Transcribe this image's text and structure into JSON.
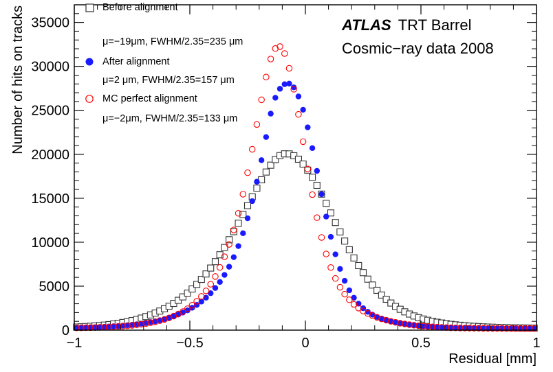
{
  "chart_data": {
    "type": "scatter",
    "title": "",
    "xlabel": "Residual [mm]",
    "ylabel": "Number of hits on tracks",
    "xlim": [
      -1,
      1
    ],
    "ylim": [
      0,
      37000
    ],
    "x_ticks": [
      -1,
      -0.5,
      0,
      0.5,
      1
    ],
    "x_tick_labels": [
      "−1",
      "−0.5",
      "0",
      "0.5",
      "1"
    ],
    "y_ticks": [
      0,
      5000,
      10000,
      15000,
      20000,
      25000,
      30000,
      35000
    ],
    "y_tick_labels": [
      "0",
      "5000",
      "10000",
      "15000",
      "20000",
      "25000",
      "30000",
      "35000"
    ],
    "grid": false,
    "legend_position": "top-left",
    "annotations": [
      {
        "bold": "ATLAS",
        "text": "TRT Barrel"
      },
      {
        "text": "Cosmic−ray data 2008"
      }
    ],
    "x": [
      -0.99,
      -0.97,
      -0.95,
      -0.93,
      -0.91,
      -0.89,
      -0.87,
      -0.85,
      -0.83,
      -0.81,
      -0.79,
      -0.77,
      -0.75,
      -0.73,
      -0.71,
      -0.69,
      -0.67,
      -0.65,
      -0.63,
      -0.61,
      -0.59,
      -0.57,
      -0.55,
      -0.53,
      -0.51,
      -0.49,
      -0.47,
      -0.45,
      -0.43,
      -0.41,
      -0.39,
      -0.37,
      -0.35,
      -0.33,
      -0.31,
      -0.29,
      -0.27,
      -0.25,
      -0.23,
      -0.21,
      -0.19,
      -0.17,
      -0.15,
      -0.13,
      -0.11,
      -0.09,
      -0.07,
      -0.05,
      -0.03,
      -0.01,
      0.01,
      0.03,
      0.05,
      0.07,
      0.09,
      0.11,
      0.13,
      0.15,
      0.17,
      0.19,
      0.21,
      0.23,
      0.25,
      0.27,
      0.29,
      0.31,
      0.33,
      0.35,
      0.37,
      0.39,
      0.41,
      0.43,
      0.45,
      0.47,
      0.49,
      0.51,
      0.53,
      0.55,
      0.57,
      0.59,
      0.61,
      0.63,
      0.65,
      0.67,
      0.69,
      0.71,
      0.73,
      0.75,
      0.77,
      0.79,
      0.81,
      0.83,
      0.85,
      0.87,
      0.89,
      0.91,
      0.93,
      0.95,
      0.97,
      0.99
    ],
    "series": [
      {
        "name": "Before alignment",
        "sub_label": "μ=−19μm, FWHM/2.35=235 μm",
        "marker": "open-square",
        "color": "#333333",
        "values": [
          350,
          380,
          410,
          440,
          480,
          520,
          570,
          630,
          700,
          780,
          870,
          970,
          1090,
          1220,
          1370,
          1540,
          1730,
          1940,
          2170,
          2430,
          2720,
          3040,
          3390,
          3780,
          4210,
          4680,
          5200,
          5770,
          6390,
          7060,
          7790,
          8570,
          9400,
          10280,
          11200,
          12160,
          13150,
          14160,
          15160,
          16150,
          17100,
          17980,
          18760,
          19400,
          19850,
          20050,
          20040,
          19830,
          19440,
          18890,
          18200,
          17390,
          16470,
          15470,
          14420,
          13330,
          12240,
          11170,
          10130,
          9140,
          8210,
          7340,
          6540,
          5800,
          5130,
          4530,
          3990,
          3510,
          3080,
          2700,
          2370,
          2080,
          1830,
          1610,
          1420,
          1260,
          1120,
          1000,
          900,
          810,
          730,
          660,
          600,
          550,
          500,
          460,
          430,
          400,
          370,
          350,
          330,
          310,
          295,
          280,
          270,
          260,
          250,
          240,
          235,
          230
        ]
      },
      {
        "name": "After alignment",
        "sub_label": "μ=2 μm, FWHM/2.35=157 μm",
        "marker": "filled-circle",
        "color": "#1a1aff",
        "values": [
          290,
          300,
          310,
          320,
          340,
          360,
          380,
          410,
          440,
          470,
          510,
          560,
          610,
          670,
          740,
          820,
          910,
          1010,
          1130,
          1260,
          1410,
          1580,
          1780,
          2000,
          2250,
          2540,
          2870,
          3250,
          3690,
          4200,
          4790,
          5480,
          6280,
          7210,
          8300,
          9560,
          11020,
          12720,
          14670,
          16880,
          19330,
          21960,
          24620,
          26430,
          27450,
          27970,
          28040,
          27610,
          26580,
          25060,
          23060,
          20700,
          18110,
          15460,
          12910,
          10610,
          8620,
          6960,
          5610,
          4530,
          3680,
          3010,
          2490,
          2080,
          1760,
          1500,
          1290,
          1120,
          980,
          860,
          760,
          680,
          610,
          550,
          500,
          460,
          420,
          390,
          360,
          340,
          320,
          300,
          290,
          280,
          270,
          260,
          250,
          245,
          240,
          235,
          230,
          228,
          225,
          222,
          220,
          218,
          216,
          214,
          212,
          210
        ]
      },
      {
        "name": "MC perfect alignment",
        "sub_label": "μ=−2μm, FWHM/2.35=133 μm",
        "marker": "open-circle",
        "color": "#ff0000",
        "values": [
          250,
          260,
          270,
          280,
          295,
          310,
          330,
          350,
          380,
          410,
          450,
          490,
          540,
          600,
          670,
          750,
          840,
          950,
          1070,
          1220,
          1390,
          1590,
          1830,
          2110,
          2440,
          2830,
          3290,
          3830,
          4470,
          5220,
          6100,
          7130,
          8340,
          9750,
          11390,
          13290,
          15460,
          17900,
          20570,
          23390,
          26200,
          28780,
          30830,
          32030,
          32250,
          31460,
          29780,
          27400,
          24540,
          21440,
          18330,
          15410,
          12790,
          10540,
          8660,
          7120,
          5880,
          4880,
          4090,
          3450,
          2930,
          2510,
          2170,
          1890,
          1650,
          1450,
          1280,
          1130,
          1000,
          890,
          790,
          700,
          620,
          560,
          500,
          450,
          410,
          370,
          340,
          310,
          290,
          270,
          255,
          240,
          230,
          222,
          215,
          210,
          205,
          200,
          197,
          194,
          192,
          190,
          188,
          187,
          186,
          185,
          184,
          183
        ]
      }
    ]
  }
}
